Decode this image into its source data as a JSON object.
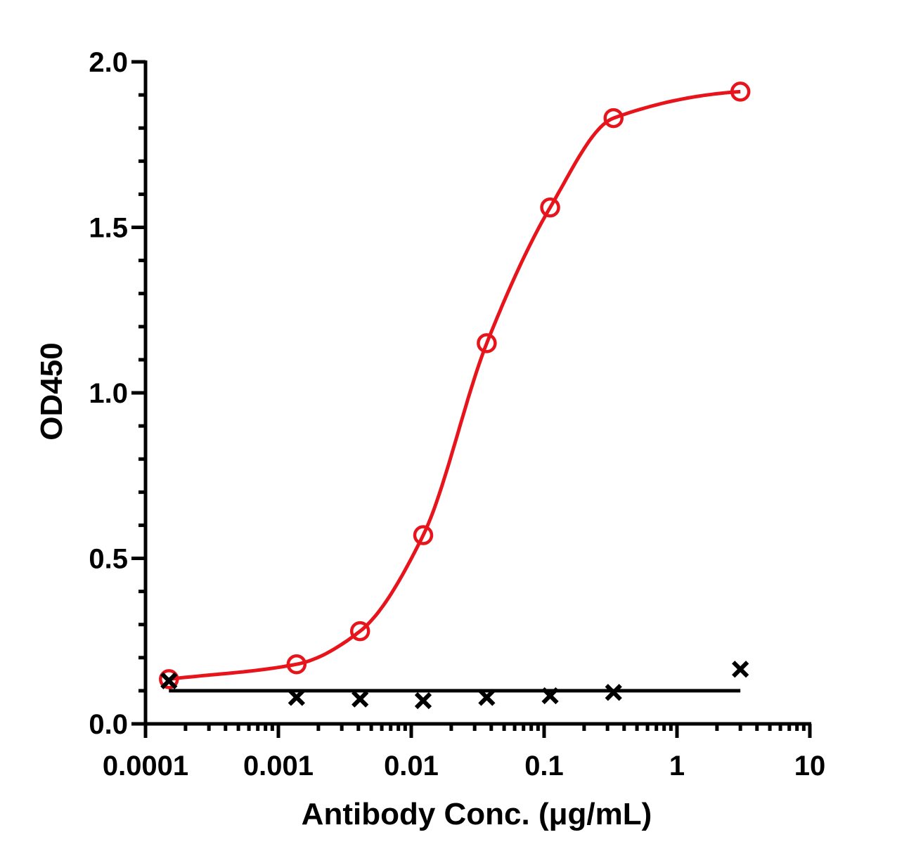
{
  "chart_data": {
    "type": "scatter",
    "title": "",
    "xlabel": "Antibody Conc. (μg/mL)",
    "ylabel": "OD450",
    "x_scale": "log",
    "xlim": [
      0.0001,
      10
    ],
    "ylim": [
      0.0,
      2.0
    ],
    "x_ticks": [
      0.0001,
      0.001,
      0.01,
      0.1,
      1,
      10
    ],
    "x_tick_labels": [
      "0.0001",
      "0.001",
      "0.01",
      "0.1",
      "1",
      "10"
    ],
    "y_ticks": [
      0.0,
      0.5,
      1.0,
      1.5,
      2.0
    ],
    "y_tick_labels": [
      "0.0",
      "0.5",
      "1.0",
      "1.5",
      "2.0"
    ],
    "grid": false,
    "legend": "none",
    "series": [
      {
        "color": "#e8141c",
        "marker": "open-circle",
        "fit": "sigmoidal",
        "x": [
          0.00015,
          0.00137,
          0.00412,
          0.0123,
          0.037,
          0.111,
          0.333,
          3
        ],
        "y": [
          0.135,
          0.18,
          0.28,
          0.57,
          1.15,
          1.56,
          1.83,
          1.91
        ]
      },
      {
        "color": "#000000",
        "marker": "x",
        "fit": "flat",
        "x": [
          0.00015,
          0.00137,
          0.00412,
          0.0123,
          0.037,
          0.111,
          0.333,
          3
        ],
        "y": [
          0.13,
          0.08,
          0.075,
          0.07,
          0.08,
          0.085,
          0.095,
          0.165
        ]
      }
    ]
  }
}
